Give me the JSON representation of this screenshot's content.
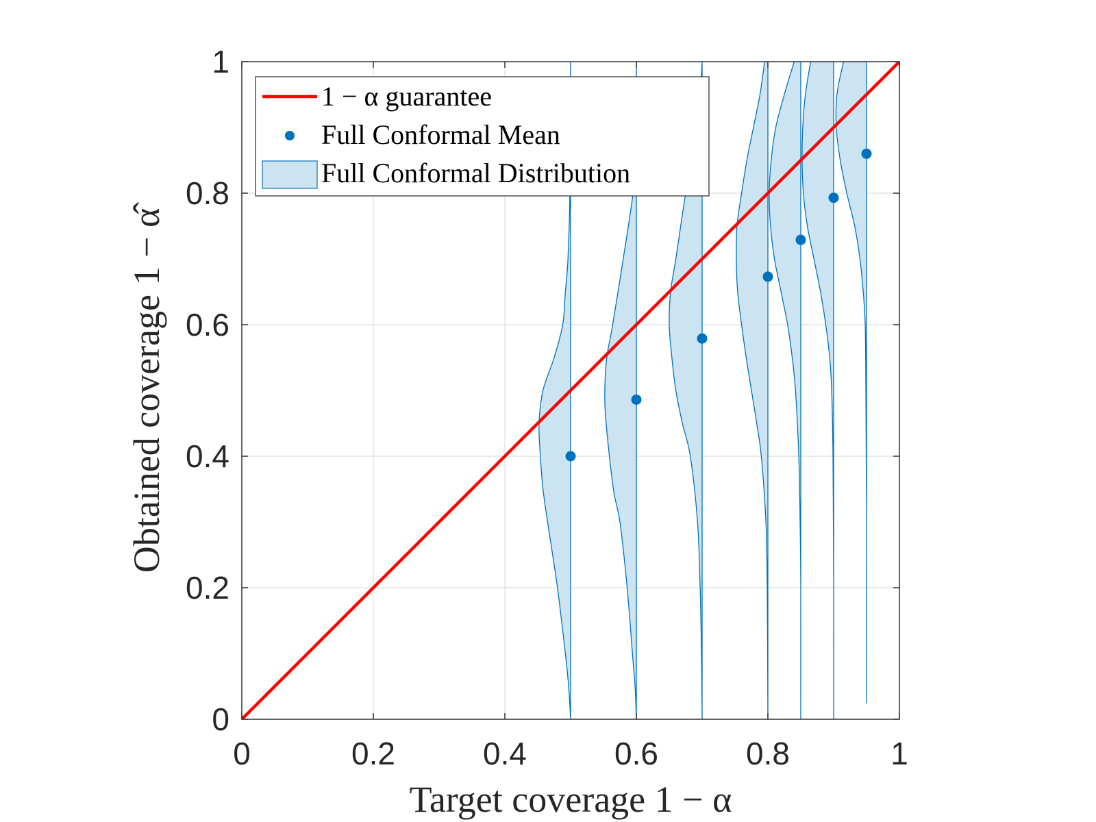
{
  "chart_data": {
    "type": "scatter",
    "title": "",
    "xlabel": "Target coverage 1 − α",
    "ylabel": "Obtained coverage 1 − α̂",
    "xlim": [
      0,
      1
    ],
    "ylim": [
      0,
      1
    ],
    "xticks": [
      0,
      0.2,
      0.4,
      0.6,
      0.8,
      1
    ],
    "yticks": [
      0,
      0.2,
      0.4,
      0.6,
      0.8,
      1
    ],
    "xtick_labels": [
      "0",
      "0.2",
      "0.4",
      "0.6",
      "0.8",
      "1"
    ],
    "ytick_labels": [
      "0",
      "0.2",
      "0.4",
      "0.6",
      "0.8",
      "1"
    ],
    "grid": true,
    "legend_position": "top-left",
    "colors": {
      "guarantee": "#ff0000",
      "mean": "#0072bd",
      "dist_fill": "#cce3f1",
      "dist_edge": "#0072bd"
    },
    "series": [
      {
        "name": "1 − α guarantee",
        "kind": "line",
        "x": [
          0,
          1
        ],
        "y": [
          0,
          1
        ]
      },
      {
        "name": "Full Conformal Mean",
        "kind": "scatter",
        "x": [
          0.5,
          0.6,
          0.7,
          0.8,
          0.85,
          0.9,
          0.95
        ],
        "y": [
          0.4,
          0.486,
          0.579,
          0.673,
          0.729,
          0.793,
          0.86
        ]
      },
      {
        "name": "Full Conformal Distribution",
        "kind": "half-violin",
        "distributions": [
          {
            "x": 0.5,
            "y": [
              0.0,
              0.05,
              0.1,
              0.2,
              0.3,
              0.35,
              0.4,
              0.45,
              0.5,
              0.55,
              0.6,
              0.65,
              0.7,
              0.8,
              1.0
            ],
            "halfwidth": [
              0.0,
              0.003,
              0.008,
              0.02,
              0.035,
              0.042,
              0.046,
              0.048,
              0.042,
              0.025,
              0.012,
              0.008,
              0.004,
              0.001,
              0.0
            ]
          },
          {
            "x": 0.6,
            "y": [
              0.0,
              0.05,
              0.1,
              0.2,
              0.3,
              0.35,
              0.45,
              0.5,
              0.55,
              0.6,
              0.7,
              0.8,
              0.85,
              0.9,
              1.0
            ],
            "halfwidth": [
              0.0,
              0.002,
              0.006,
              0.014,
              0.025,
              0.035,
              0.046,
              0.048,
              0.045,
              0.036,
              0.02,
              0.005,
              0.002,
              0.0,
              0.0
            ]
          },
          {
            "x": 0.7,
            "y": [
              0.0,
              0.1,
              0.2,
              0.3,
              0.4,
              0.45,
              0.5,
              0.55,
              0.6,
              0.65,
              0.7,
              0.8,
              0.9,
              0.95,
              1.0
            ],
            "halfwidth": [
              0.0,
              0.001,
              0.003,
              0.007,
              0.018,
              0.03,
              0.04,
              0.046,
              0.05,
              0.048,
              0.04,
              0.025,
              0.008,
              0.003,
              0.0
            ]
          },
          {
            "x": 0.8,
            "y": [
              0.0,
              0.2,
              0.3,
              0.4,
              0.45,
              0.5,
              0.55,
              0.6,
              0.65,
              0.7,
              0.75,
              0.8,
              0.85,
              0.9,
              0.95,
              1.0
            ],
            "halfwidth": [
              0.0,
              0.001,
              0.003,
              0.01,
              0.017,
              0.025,
              0.033,
              0.04,
              0.046,
              0.048,
              0.047,
              0.04,
              0.032,
              0.022,
              0.012,
              0.005
            ]
          },
          {
            "x": 0.85,
            "y": [
              0.0,
              0.2,
              0.3,
              0.4,
              0.5,
              0.55,
              0.6,
              0.65,
              0.7,
              0.75,
              0.8,
              0.85,
              0.9,
              0.95,
              1.0
            ],
            "halfwidth": [
              0.0,
              0.0,
              0.001,
              0.003,
              0.008,
              0.013,
              0.02,
              0.03,
              0.04,
              0.046,
              0.048,
              0.045,
              0.038,
              0.025,
              0.01
            ]
          },
          {
            "x": 0.9,
            "y": [
              0.0,
              0.2,
              0.4,
              0.5,
              0.55,
              0.6,
              0.65,
              0.7,
              0.75,
              0.8,
              0.85,
              0.9,
              0.95,
              1.0
            ],
            "halfwidth": [
              0.0,
              0.0,
              0.001,
              0.003,
              0.006,
              0.012,
              0.02,
              0.03,
              0.04,
              0.046,
              0.048,
              0.047,
              0.043,
              0.035
            ]
          },
          {
            "x": 0.95,
            "y": [
              0.025,
              0.3,
              0.5,
              0.6,
              0.65,
              0.7,
              0.75,
              0.8,
              0.85,
              0.9,
              0.95,
              1.0
            ],
            "halfwidth": [
              0.0,
              0.0,
              0.001,
              0.002,
              0.005,
              0.01,
              0.018,
              0.03,
              0.04,
              0.046,
              0.045,
              0.035
            ]
          }
        ]
      }
    ],
    "legend": [
      {
        "label": "1 − α guarantee",
        "symbol": "line"
      },
      {
        "label": "Full Conformal Mean",
        "symbol": "dot"
      },
      {
        "label": "Full Conformal Distribution",
        "symbol": "patch"
      }
    ]
  }
}
